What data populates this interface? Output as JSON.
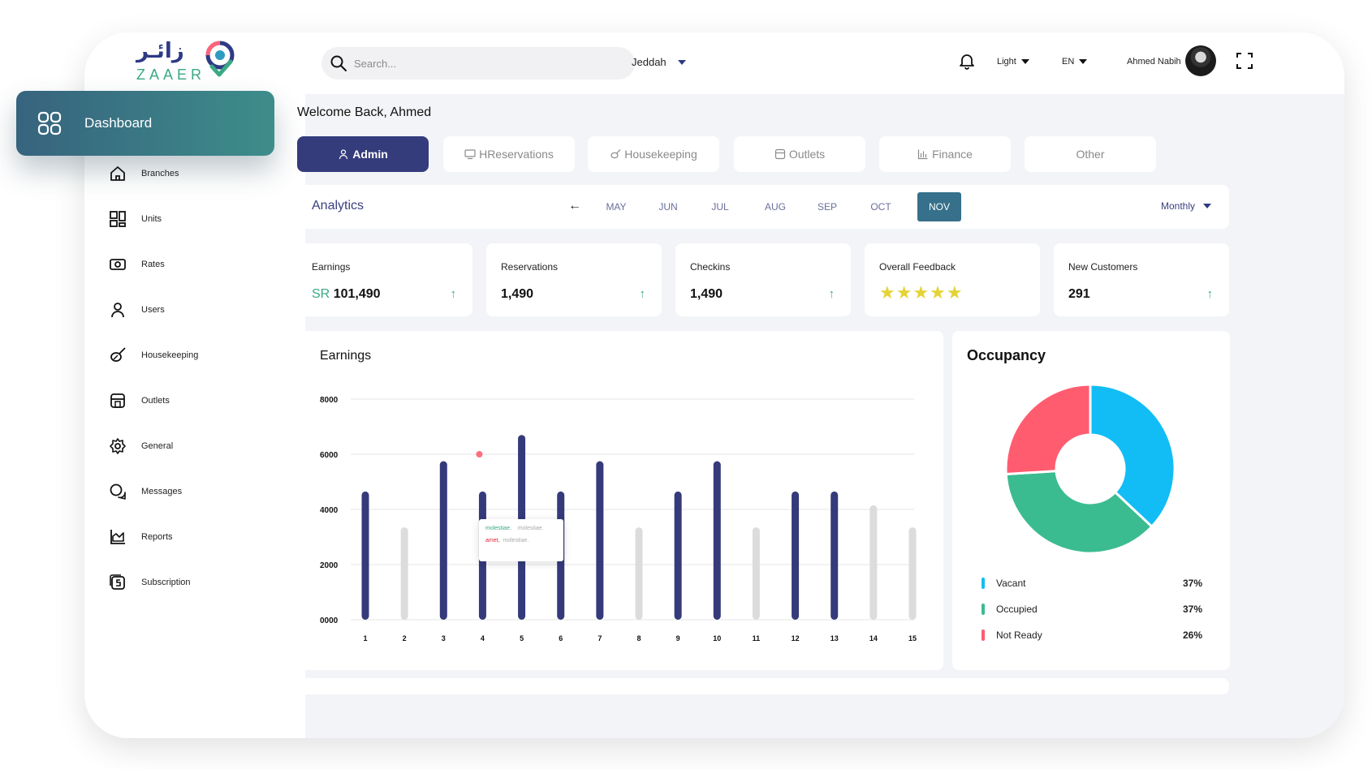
{
  "app": {
    "logo_arabic": "زائـر",
    "logo_latin": "ZAAER"
  },
  "topbar": {
    "search_placeholder": "Search...",
    "city": "Jeddah",
    "theme": "Light",
    "language": "EN",
    "user_name": "Ahmed Nabih"
  },
  "sidebar": {
    "dashboard_label": "Dashboard",
    "items": [
      {
        "label": "Branches",
        "icon": "home-icon"
      },
      {
        "label": "Units",
        "icon": "units-grid-icon"
      },
      {
        "label": "Rates",
        "icon": "money-icon"
      },
      {
        "label": "Users",
        "icon": "user-icon"
      },
      {
        "label": "Housekeeping",
        "icon": "broom-icon"
      },
      {
        "label": "Outlets",
        "icon": "store-icon"
      },
      {
        "label": "General",
        "icon": "gear-icon"
      },
      {
        "label": "Messages",
        "icon": "chat-icon"
      },
      {
        "label": "Reports",
        "icon": "chart-icon"
      },
      {
        "label": "Subscription",
        "icon": "subscription-icon"
      }
    ]
  },
  "main": {
    "welcome": "Welcome Back, Ahmed",
    "tabs": [
      {
        "label": "Admin",
        "icon": "user-icon",
        "active": true
      },
      {
        "label": "HReservations",
        "icon": "monitor-icon",
        "active": false
      },
      {
        "label": "Housekeeping",
        "icon": "broom-icon",
        "active": false
      },
      {
        "label": "Outlets",
        "icon": "store-icon",
        "active": false
      },
      {
        "label": "Finance",
        "icon": "bar-chart-icon",
        "active": false
      },
      {
        "label": "Other",
        "icon": "",
        "active": false
      }
    ],
    "analytics": {
      "title": "Analytics",
      "months": [
        "MAY",
        "JUN",
        "JUL",
        "AUG",
        "SEP",
        "OCT",
        "NOV"
      ],
      "active_month": "NOV",
      "period": "Monthly"
    },
    "stats": [
      {
        "label": "Earnings",
        "prefix": "SR",
        "value": "101,490",
        "trend": "up"
      },
      {
        "label": "Reservations",
        "prefix": "",
        "value": "1,490",
        "trend": "up"
      },
      {
        "label": "Checkins",
        "prefix": "",
        "value": "1,490",
        "trend": "up"
      },
      {
        "label": "Overall Feedback",
        "prefix": "",
        "value": "",
        "stars": 5
      },
      {
        "label": "New Customers",
        "prefix": "",
        "value": "291",
        "trend": "up"
      }
    ],
    "earnings_title": "Earnings",
    "tooltip": {
      "row1": [
        "molestiae.",
        "molestiae."
      ],
      "row2": [
        "amet,",
        "molestiae."
      ]
    },
    "occupancy": {
      "title": "Occupancy",
      "legend": [
        {
          "label": "Vacant",
          "pct": "37%",
          "color": "#12bdf5"
        },
        {
          "label": "Occupied",
          "pct": "37%",
          "color": "#3bbc90"
        },
        {
          "label": "Not Ready",
          "pct": "26%",
          "color": "#ff5c70"
        }
      ]
    }
  },
  "colors": {
    "primary": "#353c7c",
    "accent_teal": "#3aa985",
    "bar_highlight": "#343a7a",
    "bar_muted": "#dcdcdc",
    "star": "#e5d336"
  },
  "chart_data": [
    {
      "type": "bar",
      "title": "Earnings",
      "categories": [
        "1",
        "2",
        "3",
        "4",
        "5",
        "6",
        "7",
        "8",
        "9",
        "10",
        "11",
        "12",
        "13",
        "14",
        "15"
      ],
      "yticks": [
        "0000",
        "2000",
        "4000",
        "6000",
        "8000"
      ],
      "ylim": [
        0,
        8000
      ],
      "series": [
        {
          "values": [
            4650,
            3350,
            5750,
            4650,
            6700,
            4650,
            5750,
            3350,
            4650,
            5750,
            3350,
            4650,
            4650,
            4150,
            3350
          ]
        }
      ],
      "highlighted": [
        true,
        false,
        true,
        true,
        true,
        true,
        true,
        false,
        true,
        true,
        false,
        true,
        true,
        false,
        false
      ],
      "marker": {
        "category": "4",
        "value": 6000,
        "color": "#ff6e7d"
      },
      "grid": true,
      "legend": "none"
    },
    {
      "type": "pie",
      "title": "Occupancy",
      "labels": [
        "Vacant",
        "Occupied",
        "Not Ready"
      ],
      "values": [
        37,
        37,
        26
      ],
      "colors": [
        "#12bdf5",
        "#3bbc90",
        "#ff5c70"
      ],
      "donut": true
    }
  ]
}
